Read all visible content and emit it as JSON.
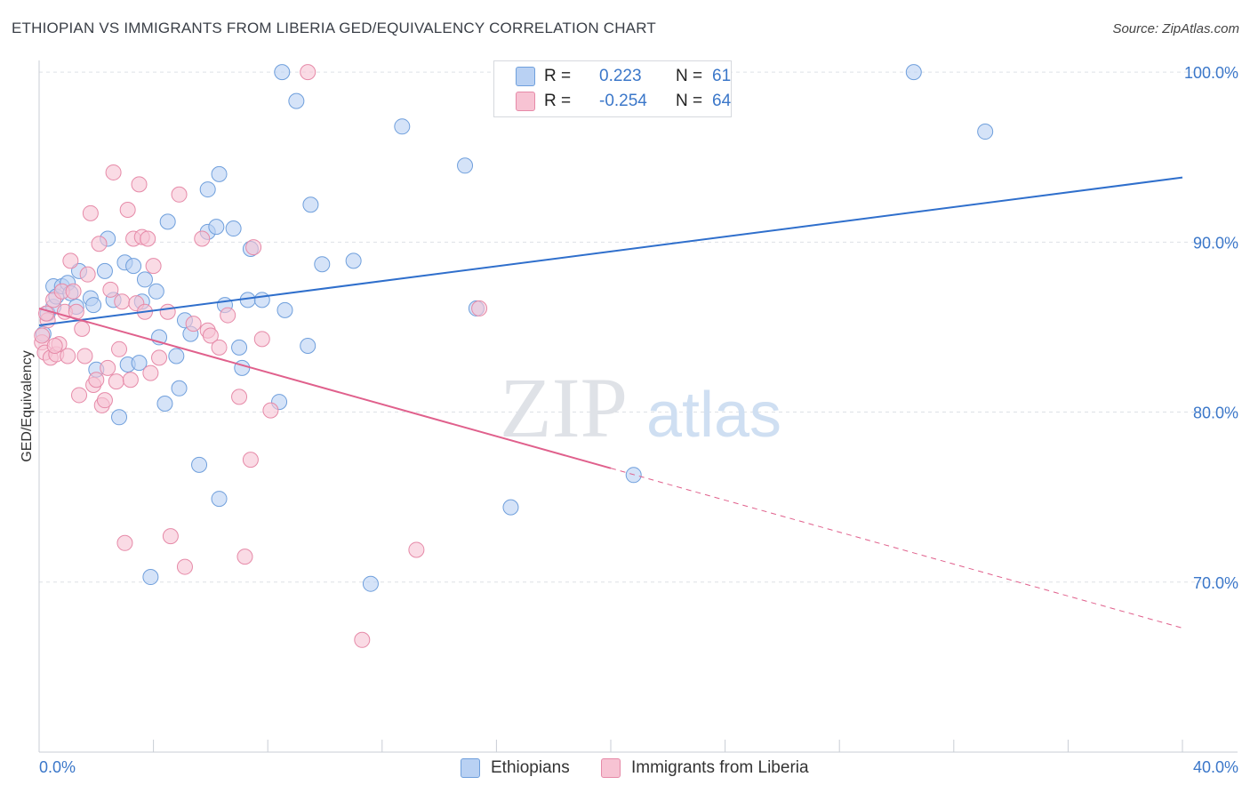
{
  "title": "ETHIOPIAN VS IMMIGRANTS FROM LIBERIA GED/EQUIVALENCY CORRELATION CHART",
  "source": "Source: ZipAtlas.com",
  "watermark": {
    "zip": "ZIP",
    "atlas": "atlas"
  },
  "legend_top": [
    {
      "r_label": "R =",
      "r_value": "0.223",
      "n_label": "N =",
      "n_value": "61"
    },
    {
      "r_label": "R =",
      "r_value": "-0.254",
      "n_label": "N =",
      "n_value": "64"
    }
  ],
  "legend_bottom": [
    "Ethiopians",
    "Immigrants from Liberia"
  ],
  "colors": {
    "ethiopians_fill": "#b9d1f3",
    "ethiopians_stroke": "#6f9fdc",
    "ethiopians_line": "#2f6fcc",
    "liberia_fill": "#f7c3d3",
    "liberia_stroke": "#e68aa8",
    "liberia_line": "#e0608c",
    "tick_label": "#3b77c9",
    "grid": "#dde1e6"
  },
  "chart_data": {
    "type": "scatter",
    "title": "ETHIOPIAN VS IMMIGRANTS FROM LIBERIA GED/EQUIVALENCY CORRELATION CHART",
    "xlabel": "",
    "ylabel": "GED/Equivalency",
    "xlim": [
      0,
      40
    ],
    "ylim": [
      60,
      101
    ],
    "x_tick_labels": [
      "0.0%",
      "40.0%"
    ],
    "y_ticks": [
      70,
      80,
      90,
      100
    ],
    "y_tick_labels": [
      "70.0%",
      "80.0%",
      "90.0%",
      "100.0%"
    ],
    "grid": true,
    "legend_position": "top-center",
    "series": [
      {
        "name": "Ethiopians",
        "R": 0.223,
        "N": 61,
        "trend": {
          "x": [
            0,
            40
          ],
          "y": [
            85.1,
            93.8
          ],
          "solid_to": 40
        },
        "points": [
          [
            0.3,
            85.8
          ],
          [
            0.5,
            86.2
          ],
          [
            0.5,
            87.4
          ],
          [
            0.6,
            86.8
          ],
          [
            0.8,
            87.4
          ],
          [
            1.0,
            87.6
          ],
          [
            1.1,
            87.0
          ],
          [
            1.3,
            86.2
          ],
          [
            1.4,
            88.3
          ],
          [
            1.8,
            86.7
          ],
          [
            1.9,
            86.3
          ],
          [
            2.0,
            82.5
          ],
          [
            2.3,
            88.3
          ],
          [
            2.4,
            90.2
          ],
          [
            2.6,
            86.6
          ],
          [
            2.8,
            79.7
          ],
          [
            3.0,
            88.8
          ],
          [
            3.1,
            82.8
          ],
          [
            3.3,
            88.6
          ],
          [
            3.5,
            82.9
          ],
          [
            3.6,
            86.5
          ],
          [
            3.7,
            87.8
          ],
          [
            3.9,
            70.3
          ],
          [
            4.1,
            87.1
          ],
          [
            4.2,
            84.4
          ],
          [
            4.4,
            80.5
          ],
          [
            4.5,
            91.2
          ],
          [
            4.8,
            83.3
          ],
          [
            4.9,
            81.4
          ],
          [
            5.1,
            85.4
          ],
          [
            5.3,
            84.6
          ],
          [
            5.6,
            76.9
          ],
          [
            5.9,
            93.1
          ],
          [
            5.9,
            90.6
          ],
          [
            6.2,
            90.9
          ],
          [
            6.3,
            74.9
          ],
          [
            6.3,
            94.0
          ],
          [
            6.5,
            86.3
          ],
          [
            6.8,
            90.8
          ],
          [
            7.0,
            83.8
          ],
          [
            7.1,
            82.6
          ],
          [
            7.3,
            86.6
          ],
          [
            7.4,
            89.6
          ],
          [
            7.8,
            86.6
          ],
          [
            8.4,
            80.6
          ],
          [
            8.5,
            100.0
          ],
          [
            8.6,
            86.0
          ],
          [
            9.0,
            98.3
          ],
          [
            9.4,
            83.9
          ],
          [
            9.5,
            92.2
          ],
          [
            9.9,
            88.7
          ],
          [
            11.0,
            88.9
          ],
          [
            11.6,
            69.9
          ],
          [
            12.7,
            96.8
          ],
          [
            14.9,
            94.5
          ],
          [
            15.3,
            86.1
          ],
          [
            16.5,
            74.4
          ],
          [
            20.8,
            76.3
          ],
          [
            30.6,
            100.0
          ],
          [
            33.1,
            96.5
          ],
          [
            0.15,
            84.6
          ]
        ]
      },
      {
        "name": "Immigrants from Liberia",
        "R": -0.254,
        "N": 64,
        "trend": {
          "x": [
            0,
            40
          ],
          "y": [
            86.1,
            67.3
          ],
          "solid_to": 20
        },
        "points": [
          [
            0.1,
            84.1
          ],
          [
            0.2,
            83.5
          ],
          [
            0.3,
            85.4
          ],
          [
            0.4,
            83.2
          ],
          [
            0.5,
            86.6
          ],
          [
            0.6,
            83.4
          ],
          [
            0.7,
            84.0
          ],
          [
            0.8,
            87.1
          ],
          [
            0.9,
            85.9
          ],
          [
            1.0,
            83.3
          ],
          [
            1.1,
            88.9
          ],
          [
            1.2,
            87.1
          ],
          [
            1.3,
            85.9
          ],
          [
            1.4,
            81.0
          ],
          [
            1.5,
            84.9
          ],
          [
            1.6,
            83.3
          ],
          [
            1.7,
            88.1
          ],
          [
            1.8,
            91.7
          ],
          [
            1.9,
            81.6
          ],
          [
            2.0,
            81.9
          ],
          [
            2.1,
            89.9
          ],
          [
            2.2,
            80.4
          ],
          [
            2.3,
            80.7
          ],
          [
            2.4,
            82.6
          ],
          [
            2.5,
            87.2
          ],
          [
            2.6,
            94.1
          ],
          [
            2.7,
            81.8
          ],
          [
            2.8,
            83.7
          ],
          [
            2.9,
            86.5
          ],
          [
            3.0,
            72.3
          ],
          [
            3.1,
            91.9
          ],
          [
            3.2,
            81.9
          ],
          [
            3.3,
            90.2
          ],
          [
            3.4,
            86.4
          ],
          [
            3.5,
            93.4
          ],
          [
            3.6,
            90.3
          ],
          [
            3.7,
            85.9
          ],
          [
            3.8,
            90.2
          ],
          [
            3.9,
            82.3
          ],
          [
            4.0,
            88.6
          ],
          [
            4.2,
            83.2
          ],
          [
            4.5,
            85.9
          ],
          [
            4.6,
            72.7
          ],
          [
            4.9,
            92.8
          ],
          [
            5.1,
            70.9
          ],
          [
            5.4,
            85.2
          ],
          [
            5.7,
            90.2
          ],
          [
            5.9,
            84.8
          ],
          [
            6.0,
            84.5
          ],
          [
            6.3,
            83.8
          ],
          [
            6.6,
            85.7
          ],
          [
            7.0,
            80.9
          ],
          [
            7.2,
            71.5
          ],
          [
            7.4,
            77.2
          ],
          [
            7.5,
            89.7
          ],
          [
            7.8,
            84.3
          ],
          [
            8.1,
            80.1
          ],
          [
            9.4,
            100.0
          ],
          [
            11.3,
            66.6
          ],
          [
            13.2,
            71.9
          ],
          [
            15.4,
            86.1
          ],
          [
            0.1,
            84.5
          ],
          [
            0.25,
            85.8
          ],
          [
            0.55,
            83.9
          ]
        ]
      }
    ]
  }
}
